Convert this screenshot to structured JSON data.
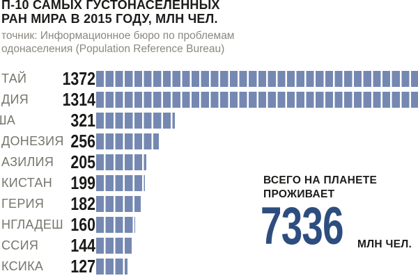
{
  "header": {
    "title_line1": "П-10 САМЫХ ГУСТОНАСЕЛЕННЫХ",
    "title_line2": "РАН МИРА В 2015 ГОДУ, МЛН ЧЕЛ.",
    "source_line1": "точник: Информационное бюро по проблемам",
    "source_line2": "одонаселения (Population Reference Bureau)"
  },
  "chart_data": {
    "type": "bar",
    "orientation": "horizontal",
    "title": "П-10 САМЫХ ГУСТОНАСЕЛЕННЫХ РАН МИРА В 2015 ГОДУ, МЛН ЧЕЛ.",
    "source": "точник: Информационное бюро по проблемам одонаселения (Population Reference Bureau)",
    "categories": [
      "ТАЙ",
      "ДИЯ",
      "ША",
      "ДОНЕЗИЯ",
      "АЗИЛИЯ",
      "КИСТАН",
      "ГЕРИЯ",
      "НГЛАДЕШ",
      "ССИЯ",
      "КСИКА"
    ],
    "values": [
      1372,
      1314,
      321,
      256,
      205,
      199,
      182,
      160,
      144,
      127
    ],
    "value_labels": [
      "1372",
      "1314",
      "321",
      "256",
      "205",
      "199",
      "182",
      "160",
      "144",
      "127"
    ],
    "unit": "млн чел.",
    "legend": "none",
    "grid": false,
    "bar_style": "segmented-tiles",
    "annotation": {
      "label_line1": "ВСЕГО НА ПЛАНЕТЕ",
      "label_line2": "ПРОЖИВАЕТ",
      "value": "7336",
      "unit": "МЛН ЧЕЛ."
    }
  },
  "total": {
    "label_line1": "ВСЕГО НА ПЛАНЕТЕ",
    "label_line2": "ПРОЖИВАЕТ",
    "value": "7336",
    "unit": "МЛН ЧЕЛ."
  },
  "colors": {
    "bar": "#7488B1",
    "total_value": "#2E4D7F",
    "title_text": "#1D1C1A",
    "country_label": "#77756D",
    "source_text": "#8A887F",
    "background": "#FFFFFF"
  }
}
